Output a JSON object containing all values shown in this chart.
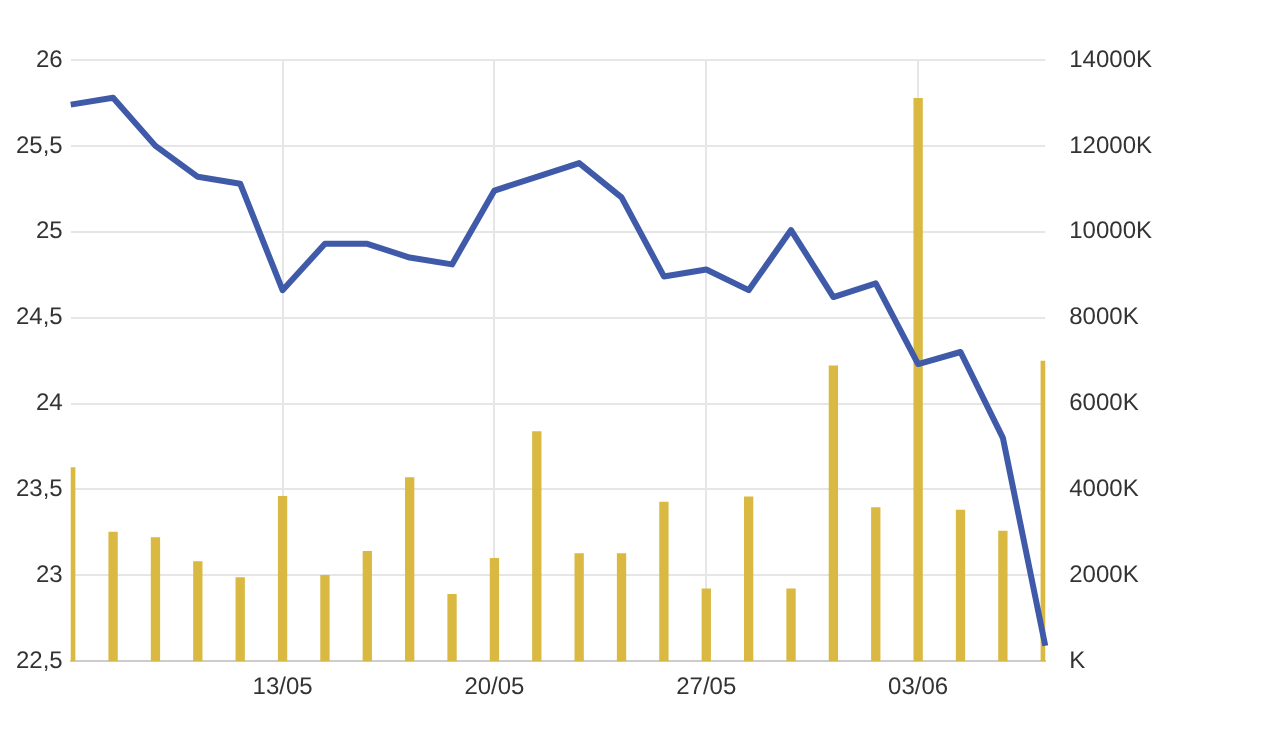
{
  "chart_data": {
    "type": "line",
    "categories": [
      null,
      null,
      null,
      null,
      null,
      "13/05",
      null,
      null,
      null,
      null,
      "20/05",
      null,
      null,
      null,
      null,
      "27/05",
      null,
      null,
      null,
      null,
      "03/06",
      null,
      null,
      null
    ],
    "series": [
      {
        "type": "bar",
        "axis": "y2",
        "color": "#d9b942",
        "values": [
          4500,
          3000,
          2870,
          2310,
          1940,
          3830,
          1990,
          2550,
          4270,
          1550,
          2390,
          5340,
          2500,
          2500,
          3700,
          1680,
          3820,
          1680,
          6870,
          3570,
          13100,
          3510,
          3020,
          6980
        ]
      },
      {
        "color": "#3f5aa8",
        "values": [
          25.74,
          25.78,
          25.5,
          25.32,
          25.28,
          24.66,
          24.93,
          24.93,
          24.85,
          24.81,
          25.24,
          25.32,
          25.4,
          25.2,
          24.74,
          24.78,
          24.66,
          25.01,
          24.62,
          24.7,
          24.23,
          24.3,
          23.8,
          22.59
        ]
      }
    ],
    "ylim": [
      22.5,
      26
    ],
    "yticks": [
      {
        "value": 22.5,
        "label": "22,5"
      },
      23,
      {
        "value": 23.5,
        "label": "23,5"
      },
      24,
      {
        "value": 24.5,
        "label": "24,5"
      },
      25,
      {
        "value": 25.5,
        "label": "25,5"
      },
      26
    ],
    "y2lim": [
      0,
      14000
    ],
    "y2ticks": [
      {
        "value": 0,
        "label": "K"
      },
      {
        "value": 2000,
        "label": "2000K"
      },
      {
        "value": 4000,
        "label": "4000K"
      },
      {
        "value": 6000,
        "label": "6000K"
      },
      {
        "value": 8000,
        "label": "8000K"
      },
      {
        "value": 10000,
        "label": "10000K"
      },
      {
        "value": 12000,
        "label": "12000K"
      },
      {
        "value": 14000,
        "label": "14000K"
      }
    ],
    "grid": true,
    "legend": false,
    "marker": "none",
    "line_style": "solid"
  }
}
